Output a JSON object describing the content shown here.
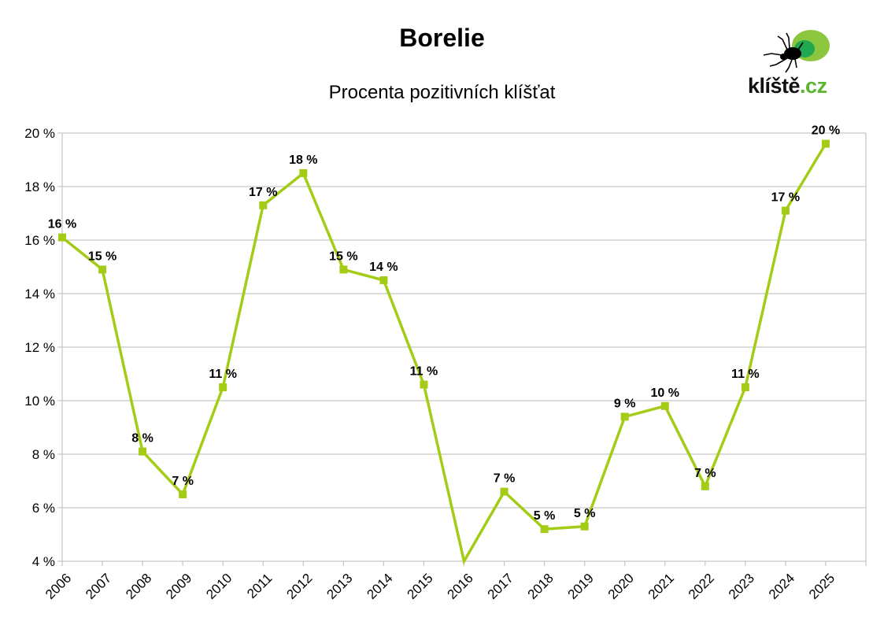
{
  "header": {
    "title": "Borelie",
    "subtitle": "Procenta pozitivních klíšťat"
  },
  "logo": {
    "text_main": "klíště",
    "text_domain": ".cz",
    "colors": {
      "outer": "#8cc63f",
      "inner": "#1fa84f",
      "tick": "#000000",
      "domain": "#5cb531"
    }
  },
  "colors": {
    "line": "#a4cc17",
    "grid": "#c8c8c8",
    "axis_text": "#000000"
  },
  "chart_data": {
    "type": "line",
    "title": "Borelie",
    "subtitle": "Procenta pozitivních klíšťat",
    "xlabel": "",
    "ylabel": "",
    "categories": [
      "2006",
      "2007",
      "2008",
      "2009",
      "2010",
      "2011",
      "2012",
      "2013",
      "2014",
      "2015",
      "2016",
      "2017",
      "2018",
      "2019",
      "2020",
      "2021",
      "2022",
      "2023",
      "2024",
      "2025"
    ],
    "series": [
      {
        "name": "Borelie",
        "values": [
          16.1,
          14.9,
          8.1,
          6.5,
          10.5,
          17.3,
          18.5,
          14.9,
          14.5,
          10.6,
          4.0,
          6.6,
          5.2,
          5.3,
          9.4,
          9.8,
          6.8,
          10.5,
          17.1,
          19.6
        ],
        "data_labels": [
          "16 %",
          "15 %",
          "8 %",
          "7 %",
          "11 %",
          "17 %",
          "18 %",
          "15 %",
          "14 %",
          "11 %",
          "",
          "7 %",
          "5 %",
          "5 %",
          "9 %",
          "10 %",
          "7 %",
          "11 %",
          "17 %",
          "20 %"
        ],
        "markers": [
          true,
          true,
          true,
          true,
          true,
          true,
          true,
          true,
          true,
          true,
          false,
          true,
          true,
          true,
          true,
          true,
          true,
          true,
          true,
          true
        ],
        "color": "#a4cc17"
      }
    ],
    "ylim": [
      4,
      20
    ],
    "yticks": [
      4,
      6,
      8,
      10,
      12,
      14,
      16,
      18,
      20
    ],
    "ytick_labels": [
      "4 %",
      "6 %",
      "8 %",
      "10 %",
      "12 %",
      "14 %",
      "16 %",
      "18 %",
      "20 %"
    ],
    "grid": true,
    "legend": "none"
  }
}
